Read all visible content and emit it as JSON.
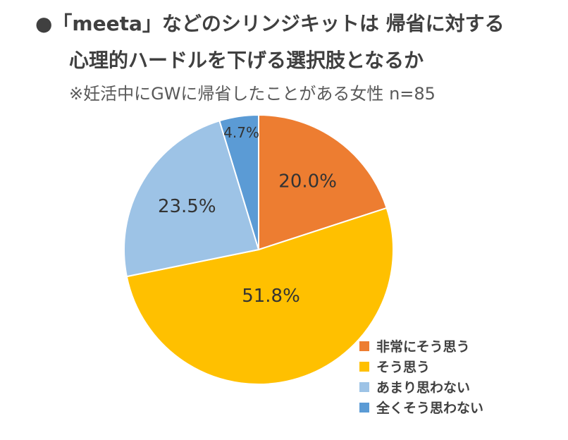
{
  "title_line1": "●「meeta」などのシリンジキットは 帰省に対する",
  "title_line2": "心理的ハードルを下げる選択肢となるか",
  "subtitle": "※妊活中にGWに帰省したことがある女性 n=85",
  "chart_data": {
    "type": "pie",
    "title": "●「meeta」などのシリンジキットは 帰省に対する 心理的ハードルを下げる選択肢となるか",
    "subtitle": "※妊活中にGWに帰省したことがある女性 n=85",
    "categories": [
      "非常にそう思う",
      "そう思う",
      "あまり思わない",
      "全くそう思わない"
    ],
    "values": [
      20.0,
      51.8,
      23.5,
      4.7
    ],
    "labels": [
      "20.0%",
      "51.8%",
      "23.5%",
      "4.7%"
    ],
    "colors": [
      "#ED7D31",
      "#FFC000",
      "#9DC3E6",
      "#5B9BD5"
    ],
    "start": "12 o'clock",
    "direction": "clockwise",
    "legend_position": "bottom-right"
  }
}
